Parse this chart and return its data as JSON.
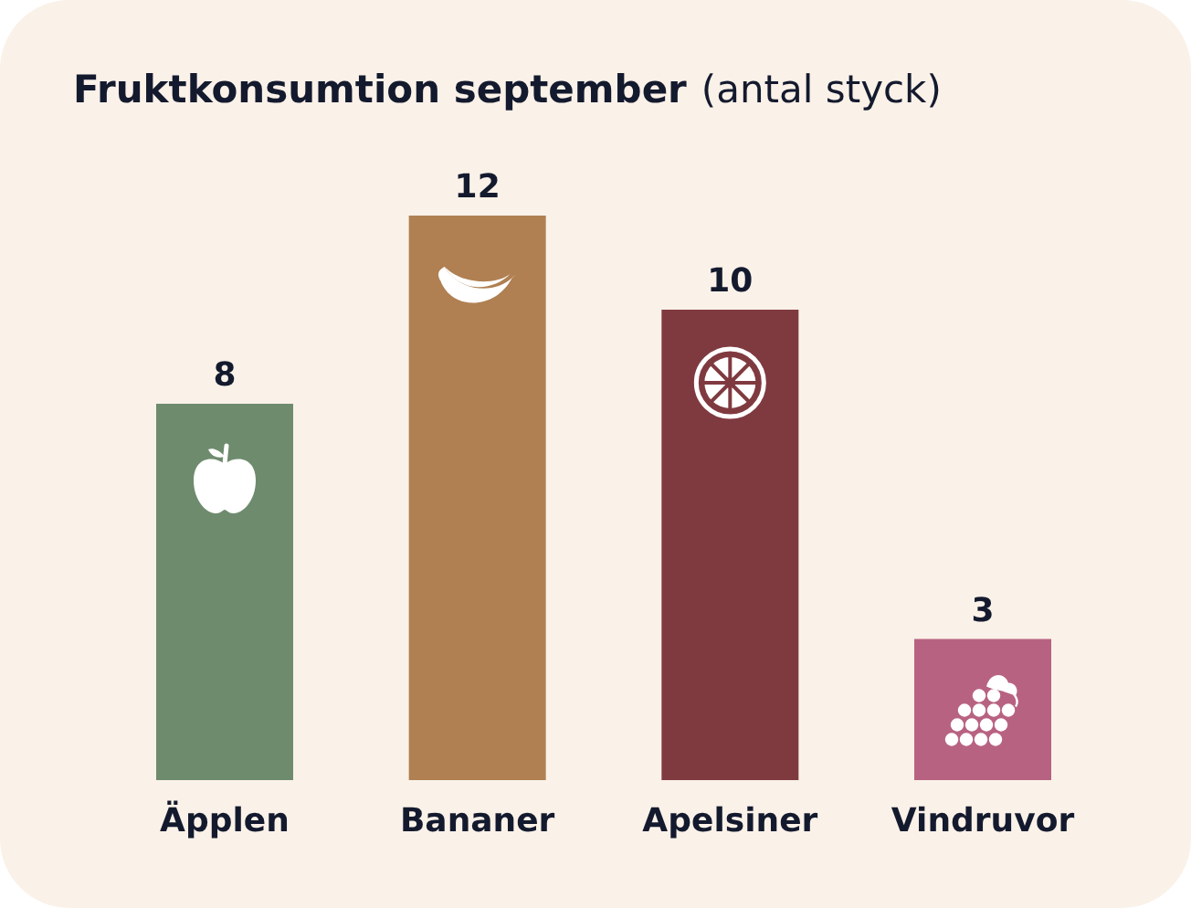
{
  "chart_data": {
    "type": "bar",
    "title": "Fruktkonsumtion september",
    "subtitle": "(antal styck)",
    "categories": [
      "Äpplen",
      "Bananer",
      "Apelsiner",
      "Vindruvor"
    ],
    "values": [
      8,
      12,
      10,
      3
    ],
    "colors": [
      "#6f8b6e",
      "#b08052",
      "#7f3a40",
      "#b86282"
    ],
    "data_labels": true,
    "tick_labels": "x"
  }
}
